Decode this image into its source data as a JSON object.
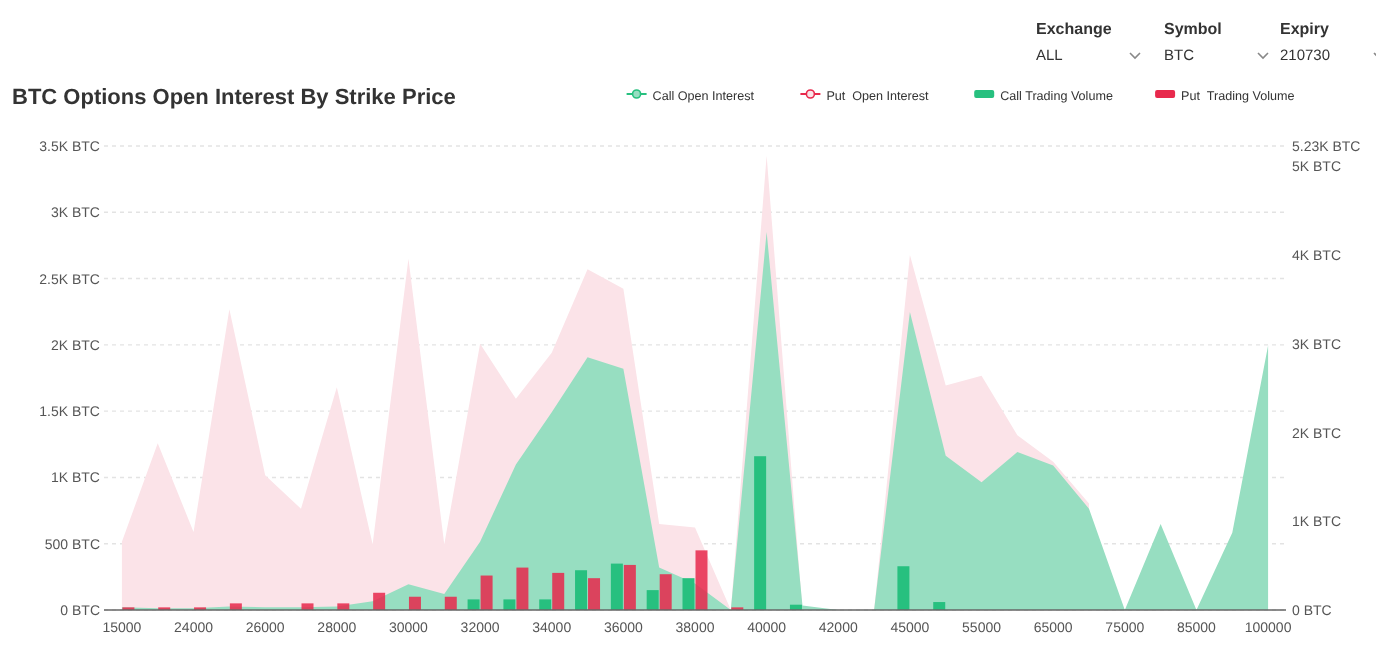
{
  "chart_data": {
    "type": "bar",
    "title": "BTC Options Open Interest By Strike Price",
    "annotations": [
      "Exchange",
      "ALL",
      "Symbol",
      "BTC",
      "Expiry",
      "210730"
    ],
    "categories": [
      "15000",
      null,
      "24000",
      null,
      "26000",
      null,
      "28000",
      null,
      "30000",
      null,
      "32000",
      null,
      "34000",
      null,
      "36000",
      null,
      "38000",
      null,
      "40000",
      null,
      "42000",
      null,
      "45000",
      null,
      "55000",
      null,
      "65000",
      null,
      "75000",
      null,
      "85000",
      null,
      "100000"
    ],
    "series": [
      {
        "name": "Call Open Interest",
        "type": "area",
        "axis": "y2",
        "color": "#97dec1",
        "values": [
          30,
          20,
          20,
          40,
          30,
          30,
          40,
          100,
          290,
          180,
          770,
          1640,
          2230,
          2850,
          2720,
          480,
          300,
          0,
          4260,
          50,
          0,
          0,
          3360,
          1740,
          1440,
          1780,
          1630,
          1140,
          0,
          970,
          0,
          870,
          2980
        ]
      },
      {
        "name": "Put  Open Interest",
        "type": "area",
        "axis": "y2",
        "color": "#fbe3e8",
        "values": [
          770,
          1880,
          880,
          3390,
          1520,
          1140,
          2510,
          740,
          3960,
          740,
          3000,
          2380,
          2900,
          3840,
          3620,
          970,
          930,
          0,
          5120,
          0,
          0,
          0,
          4000,
          2530,
          2640,
          1970,
          1670,
          1200,
          null,
          null,
          null,
          null,
          null
        ]
      },
      {
        "name": "Call Trading Volume",
        "type": "bar",
        "color": "#27c07f",
        "values": [
          0,
          0,
          0,
          0,
          0,
          0,
          0,
          0,
          0,
          0,
          80,
          80,
          80,
          300,
          350,
          150,
          240,
          0,
          1160,
          40,
          0,
          0,
          330,
          60,
          null,
          0,
          null,
          0,
          0,
          0,
          0,
          0,
          0
        ]
      },
      {
        "name": "Put  Trading Volume",
        "type": "bar",
        "color": "#e8294c",
        "values": [
          20,
          20,
          20,
          50,
          null,
          50,
          50,
          130,
          100,
          100,
          260,
          320,
          280,
          240,
          340,
          270,
          450,
          20,
          null,
          0,
          0,
          0,
          0,
          0,
          0,
          0,
          0,
          0,
          0,
          0,
          0,
          0,
          0
        ]
      }
    ],
    "ylim": [
      0,
      3500
    ],
    "yticks": [
      {
        "value": 0,
        "label": "0 BTC"
      },
      {
        "value": 500,
        "label": "500 BTC"
      },
      {
        "value": 1000,
        "label": "1K BTC"
      },
      {
        "value": 1500,
        "label": "1.5K BTC"
      },
      {
        "value": 2000,
        "label": "2K BTC"
      },
      {
        "value": 2500,
        "label": "2.5K BTC"
      },
      {
        "value": 3000,
        "label": "3K BTC"
      },
      {
        "value": 3500,
        "label": "3.5K BTC"
      }
    ],
    "y2lim": [
      0,
      5230
    ],
    "y2ticks": [
      {
        "value": 0,
        "label": "0 BTC"
      },
      {
        "value": 1000,
        "label": "1K BTC"
      },
      {
        "value": 2000,
        "label": "2K BTC"
      },
      {
        "value": 3000,
        "label": "3K BTC"
      },
      {
        "value": 4000,
        "label": "4K BTC"
      },
      {
        "value": 5000,
        "label": "5K BTC"
      },
      {
        "value": 5230,
        "label": "5.23K BTC"
      }
    ],
    "grid": "y",
    "legend": "top right"
  }
}
